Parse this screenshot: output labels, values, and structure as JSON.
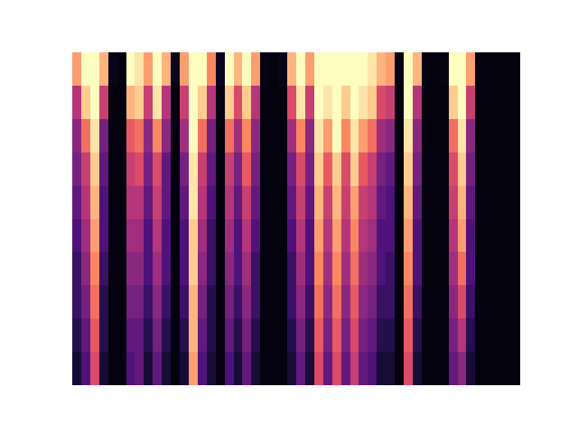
{
  "chart_data": {
    "type": "heatmap",
    "tick_labels": false,
    "zlim": [
      0,
      1
    ],
    "cells": [
      [
        0.8,
        1,
        1,
        0.85,
        0.04,
        0.02,
        1,
        0.95,
        0.8,
        1,
        0.85,
        0.05,
        0.8,
        1,
        1,
        0.75,
        0.05,
        1,
        0.85,
        1,
        0.8,
        0.03,
        0.02,
        0.04,
        0.85,
        1,
        0.8,
        1,
        1,
        1,
        1,
        1,
        1,
        0.95,
        0.85,
        0.8,
        0.03,
        1,
        0.85,
        0.02,
        0.02,
        0.03,
        1,
        1,
        0.8,
        0.02,
        0.02,
        0.02,
        0.02,
        0.02
      ],
      [
        0.5,
        0.9,
        1,
        0.55,
        0.02,
        0.02,
        0.85,
        0.9,
        0.55,
        0.95,
        0.5,
        0.02,
        0.55,
        1,
        0.9,
        0.5,
        0.03,
        0.9,
        0.6,
        0.9,
        0.5,
        0.02,
        0.02,
        0.02,
        0.6,
        0.95,
        0.55,
        1,
        0.95,
        1,
        0.9,
        1,
        0.95,
        0.9,
        0.6,
        0.55,
        0.02,
        1,
        0.5,
        0.02,
        0.02,
        0.02,
        0.9,
        1,
        0.55,
        0.02,
        0.02,
        0.02,
        0.02,
        0.02
      ],
      [
        0.4,
        0.7,
        0.95,
        0.35,
        0.02,
        0.02,
        0.65,
        0.7,
        0.4,
        0.75,
        0.4,
        0.02,
        0.45,
        1,
        0.7,
        0.35,
        0.02,
        0.7,
        0.45,
        0.75,
        0.4,
        0.02,
        0.02,
        0.02,
        0.45,
        0.75,
        0.4,
        0.95,
        0.8,
        1,
        0.75,
        0.95,
        0.8,
        0.7,
        0.45,
        0.4,
        0.02,
        0.95,
        0.4,
        0.02,
        0.02,
        0.02,
        0.7,
        0.95,
        0.4,
        0.02,
        0.02,
        0.02,
        0.02,
        0.02
      ],
      [
        0.35,
        0.55,
        0.9,
        0.3,
        0.02,
        0.02,
        0.55,
        0.6,
        0.35,
        0.6,
        0.3,
        0.02,
        0.35,
        0.95,
        0.55,
        0.3,
        0.02,
        0.55,
        0.35,
        0.65,
        0.35,
        0.02,
        0.02,
        0.02,
        0.35,
        0.6,
        0.35,
        0.9,
        0.65,
        0.9,
        0.6,
        0.9,
        0.65,
        0.55,
        0.35,
        0.3,
        0.02,
        0.9,
        0.35,
        0.02,
        0.02,
        0.02,
        0.6,
        0.9,
        0.35,
        0.02,
        0.02,
        0.02,
        0.02,
        0.02
      ],
      [
        0.3,
        0.5,
        0.85,
        0.25,
        0.02,
        0.02,
        0.5,
        0.5,
        0.3,
        0.55,
        0.3,
        0.02,
        0.3,
        0.95,
        0.5,
        0.25,
        0.02,
        0.5,
        0.3,
        0.55,
        0.3,
        0.02,
        0.02,
        0.02,
        0.3,
        0.55,
        0.3,
        0.85,
        0.55,
        0.85,
        0.55,
        0.8,
        0.55,
        0.5,
        0.3,
        0.25,
        0.02,
        0.85,
        0.3,
        0.02,
        0.02,
        0.02,
        0.55,
        0.85,
        0.3,
        0.02,
        0.02,
        0.02,
        0.02,
        0.02
      ],
      [
        0.25,
        0.45,
        0.8,
        0.25,
        0.02,
        0.02,
        0.45,
        0.45,
        0.25,
        0.5,
        0.25,
        0.02,
        0.25,
        0.9,
        0.45,
        0.2,
        0.02,
        0.45,
        0.25,
        0.5,
        0.25,
        0.02,
        0.02,
        0.02,
        0.25,
        0.5,
        0.25,
        0.8,
        0.5,
        0.8,
        0.5,
        0.75,
        0.5,
        0.45,
        0.25,
        0.25,
        0.02,
        0.8,
        0.25,
        0.02,
        0.02,
        0.02,
        0.5,
        0.8,
        0.25,
        0.02,
        0.02,
        0.02,
        0.02,
        0.02
      ],
      [
        0.2,
        0.4,
        0.75,
        0.2,
        0.02,
        0.02,
        0.4,
        0.4,
        0.25,
        0.45,
        0.25,
        0.02,
        0.25,
        0.9,
        0.4,
        0.2,
        0.02,
        0.4,
        0.25,
        0.45,
        0.2,
        0.02,
        0.02,
        0.02,
        0.2,
        0.45,
        0.25,
        0.75,
        0.45,
        0.75,
        0.45,
        0.7,
        0.45,
        0.4,
        0.25,
        0.2,
        0.02,
        0.75,
        0.25,
        0.02,
        0.02,
        0.02,
        0.45,
        0.7,
        0.25,
        0.02,
        0.02,
        0.02,
        0.02,
        0.02
      ],
      [
        0.2,
        0.35,
        0.7,
        0.15,
        0.02,
        0.02,
        0.35,
        0.35,
        0.2,
        0.4,
        0.2,
        0.02,
        0.2,
        0.85,
        0.35,
        0.15,
        0.02,
        0.35,
        0.2,
        0.4,
        0.2,
        0.02,
        0.02,
        0.02,
        0.2,
        0.4,
        0.2,
        0.7,
        0.4,
        0.7,
        0.4,
        0.65,
        0.4,
        0.35,
        0.2,
        0.2,
        0.02,
        0.7,
        0.2,
        0.02,
        0.02,
        0.02,
        0.4,
        0.6,
        0.2,
        0.02,
        0.02,
        0.02,
        0.02,
        0.02
      ],
      [
        0.15,
        0.3,
        0.65,
        0.15,
        0.02,
        0.02,
        0.3,
        0.3,
        0.15,
        0.35,
        0.15,
        0.02,
        0.15,
        0.85,
        0.3,
        0.15,
        0.02,
        0.3,
        0.15,
        0.35,
        0.15,
        0.02,
        0.02,
        0.02,
        0.15,
        0.35,
        0.15,
        0.65,
        0.35,
        0.65,
        0.35,
        0.6,
        0.35,
        0.3,
        0.15,
        0.15,
        0.02,
        0.65,
        0.15,
        0.02,
        0.02,
        0.02,
        0.35,
        0.5,
        0.15,
        0.02,
        0.02,
        0.02,
        0.02,
        0.02
      ],
      [
        0.1,
        0.25,
        0.6,
        0.1,
        0.02,
        0.02,
        0.25,
        0.3,
        0.1,
        0.3,
        0.1,
        0.02,
        0.1,
        0.8,
        0.25,
        0.1,
        0.02,
        0.25,
        0.1,
        0.3,
        0.1,
        0.02,
        0.02,
        0.02,
        0.1,
        0.3,
        0.1,
        0.6,
        0.3,
        0.6,
        0.3,
        0.55,
        0.3,
        0.25,
        0.1,
        0.1,
        0.02,
        0.6,
        0.1,
        0.02,
        0.02,
        0.02,
        0.3,
        0.4,
        0.1,
        0.02,
        0.02,
        0.02,
        0.02,
        0.02
      ]
    ]
  }
}
